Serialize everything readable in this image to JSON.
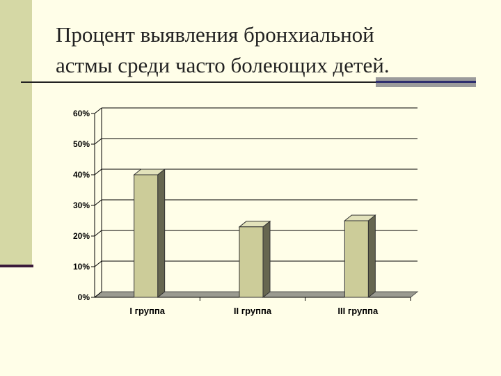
{
  "slide": {
    "title_line1": "Процент выявления бронхиальной",
    "title_line2": "астмы среди часто болеющих детей."
  },
  "colors": {
    "background": "#fffee8",
    "bar_front": "#cccc99",
    "bar_side": "#666650",
    "bar_top": "#e2e2bb",
    "floor": "#9a9a90",
    "accent": "#d5d8a5"
  },
  "chart_data": {
    "type": "bar",
    "categories": [
      "I группа",
      "II группа",
      "III группа"
    ],
    "values": [
      40,
      23,
      25
    ],
    "ylim": [
      0,
      60
    ],
    "yticks": [
      "0%",
      "10%",
      "20%",
      "30%",
      "40%",
      "50%",
      "60%"
    ],
    "grid": true,
    "three_d": true,
    "legend": "none"
  }
}
